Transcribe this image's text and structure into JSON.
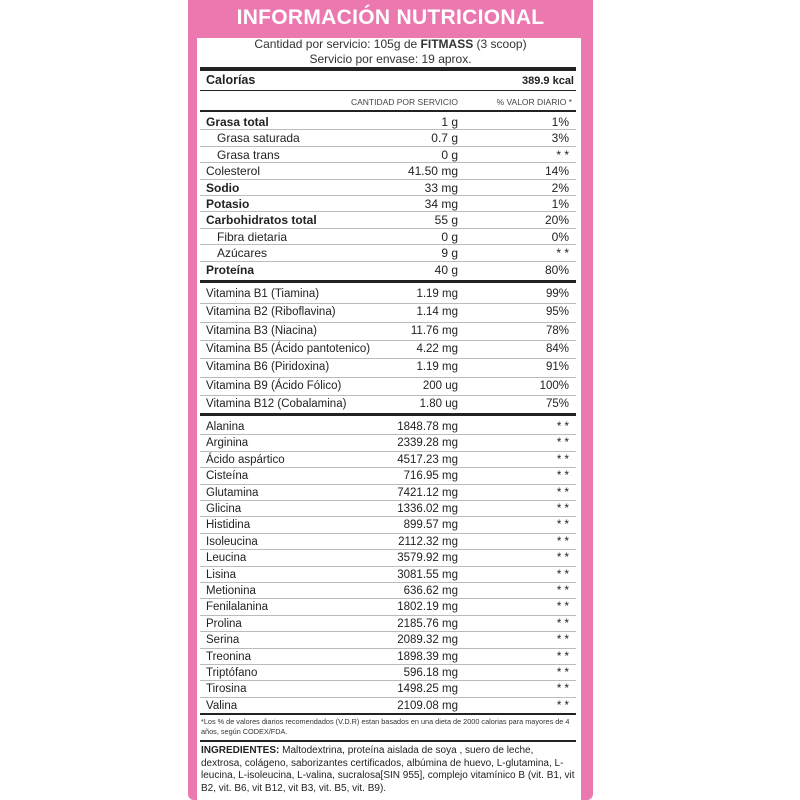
{
  "header": {
    "title": "INFORMACIÓN NUTRICIONAL"
  },
  "serving": {
    "prefix": "Cantidad por servicio: 105g de",
    "brand": "FITMASS",
    "suffix": "(3 scoop)",
    "per_container": "Servicio por envase: 19 aprox."
  },
  "calories": {
    "label": "Calorías",
    "value": "389.9 kcal"
  },
  "columns": {
    "amount": "CANTIDAD POR SERVICIO",
    "daily_value": "% VALOR DIARIO *"
  },
  "sections": [
    {
      "rows": [
        [
          "Grasa total",
          "1 g",
          "1%"
        ],
        [
          "Grasa saturada",
          "0.7 g",
          "3%"
        ],
        [
          "Grasa trans",
          "0 g",
          "* *"
        ],
        [
          "Colesterol",
          "41.50 mg",
          "14%"
        ],
        [
          "Sodio",
          "33 mg",
          "2%"
        ],
        [
          "Potasio",
          "34 mg",
          "1%"
        ],
        [
          "Carbohidratos total",
          "55 g",
          "20%"
        ],
        [
          "Fibra dietaria",
          "0 g",
          "0%"
        ],
        [
          "Azúcares",
          "9 g",
          "* *"
        ],
        [
          "Proteína",
          "40 g",
          "80%"
        ]
      ]
    },
    {
      "rows": [
        [
          "Vitamina B1 (Tiamina)",
          "1.19 mg",
          "99%"
        ],
        [
          "Vitamina B2 (Riboflavina)",
          "1.14 mg",
          "95%"
        ],
        [
          "Vitamina B3 (Niacina)",
          "11.76 mg",
          "78%"
        ],
        [
          "Vitamina B5 (Ácido pantotenico)",
          "4.22 mg",
          "84%"
        ],
        [
          "Vitamina B6 (Piridoxina)",
          "1.19 mg",
          "91%"
        ],
        [
          "Vitamina B9 (Ácido Fólico)",
          "200 ug",
          "100%"
        ],
        [
          "Vitamina B12 (Cobalamina)",
          "1.80 ug",
          "75%"
        ]
      ]
    },
    {
      "rows": [
        [
          "Alanina",
          "1848.78 mg",
          "* *"
        ],
        [
          "Arginina",
          "2339.28 mg",
          "* *"
        ],
        [
          "Ácido aspártico",
          "4517.23 mg",
          "* *"
        ],
        [
          "Cisteína",
          "716.95 mg",
          "* *"
        ],
        [
          "Glutamina",
          "7421.12 mg",
          "* *"
        ],
        [
          "Glicina",
          "1336.02 mg",
          "* *"
        ],
        [
          "Histidina",
          "899.57 mg",
          "* *"
        ],
        [
          "Isoleucina",
          "2112.32 mg",
          "* *"
        ],
        [
          "Leucina",
          "3579.92 mg",
          "* *"
        ],
        [
          "Lisina",
          "3081.55 mg",
          "* *"
        ],
        [
          "Metionina",
          "636.62 mg",
          "* *"
        ],
        [
          "Fenilalanina",
          "1802.19 mg",
          "* *"
        ],
        [
          "Prolina",
          "2185.76 mg",
          "* *"
        ],
        [
          "Serina",
          "2089.32 mg",
          "* *"
        ],
        [
          "Treonina",
          "1898.39 mg",
          "* *"
        ],
        [
          "Triptófano",
          "596.18 mg",
          "* *"
        ],
        [
          "Tirosina",
          "1498.25 mg",
          "* *"
        ],
        [
          "Valina",
          "2109.08 mg",
          "* *"
        ]
      ]
    }
  ],
  "footnote": "*Los % de valores diarios recomendados (V.D.R) estan basados en una dieta de 2000 calorias para mayores de 4 años, según CODEX/FDA.",
  "ingredients": {
    "label": "INGREDIENTES:",
    "text": "Maltodextrina, proteína aislada de soya , suero de leche, dextrosa, colágeno, saborizantes certificados, albúmina de huevo, L-glutamina, L-leucina, L-isoleucina, L-valina, sucralosa[SIN 955], complejo vitamínico B (vit. B1, vit B2, vit. B6, vit B12, vit B3, vit. B5, vit. B9)."
  }
}
